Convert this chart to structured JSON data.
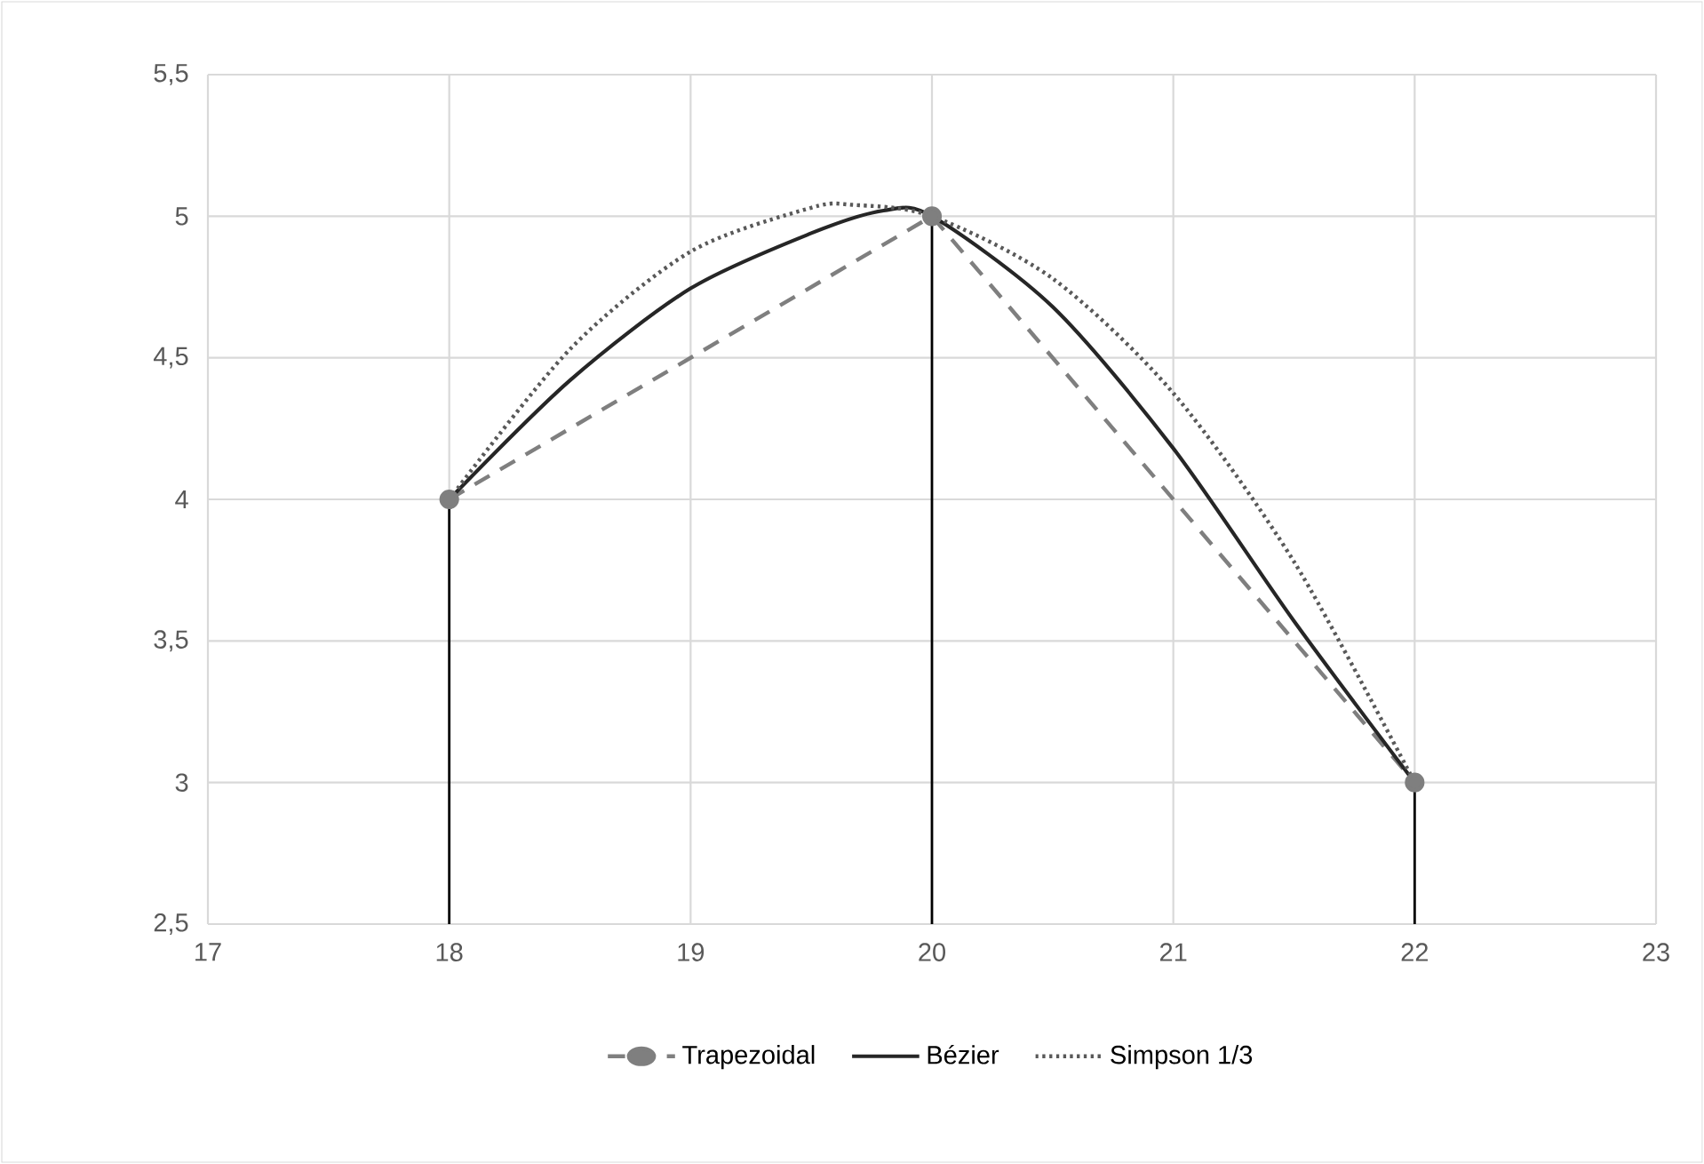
{
  "chart_data": {
    "type": "line",
    "xlim": [
      17,
      23
    ],
    "xticks": [
      17,
      18,
      19,
      20,
      21,
      22,
      23
    ],
    "ylim": [
      2.5,
      5.5
    ],
    "yticks": [
      {
        "value": 2.5,
        "label": "2,5"
      },
      {
        "value": 3,
        "label": "3"
      },
      {
        "value": 3.5,
        "label": "3,5"
      },
      {
        "value": 4,
        "label": "4"
      },
      {
        "value": 4.5,
        "label": "4,5"
      },
      {
        "value": 5,
        "label": "5"
      },
      {
        "value": 5.5,
        "label": "5,5"
      }
    ],
    "grid": true,
    "legend": "bottom",
    "series": [
      {
        "name": "Trapezoidal",
        "color": "#7f7f7f",
        "line_style": "dashed",
        "marker": "circle",
        "x": [
          18,
          20,
          22
        ],
        "values": [
          4,
          5,
          3
        ]
      },
      {
        "name": "Bézier",
        "color": "#262626",
        "line_style": "solid",
        "marker": "none",
        "x": [
          18,
          18.5,
          19,
          19.5,
          19.8,
          20,
          20.5,
          21,
          21.5,
          22
        ],
        "values": [
          4,
          4.42,
          4.745,
          4.94,
          5.02,
          5,
          4.68,
          4.18,
          3.57,
          3
        ]
      },
      {
        "name": "Simpson 1/3",
        "color": "#595959",
        "line_style": "dotted",
        "marker": "none",
        "x": [
          18,
          18.5,
          19,
          19.5,
          19.67,
          20,
          20.5,
          21,
          21.5,
          22
        ],
        "values": [
          4,
          4.53,
          4.875,
          5.03,
          5.04,
          5,
          4.78,
          4.375,
          3.78,
          3
        ]
      },
      {
        "color": "#000000",
        "line_style": "solid",
        "marker": "none",
        "x": [
          18,
          18,
          null,
          20,
          20,
          null,
          22,
          22
        ],
        "values": [
          2.5,
          4,
          null,
          2.5,
          5,
          null,
          2.5,
          3
        ]
      }
    ]
  }
}
